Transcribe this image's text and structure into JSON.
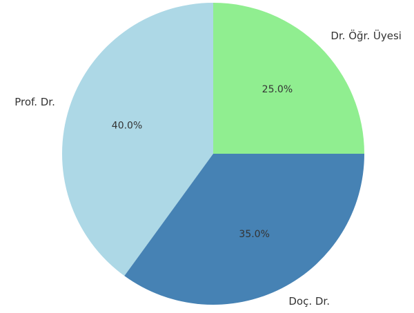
{
  "chart_data": {
    "type": "pie",
    "categories": [
      "Prof. Dr.",
      "Doç. Dr.",
      "Dr. Öğr. Üyesi"
    ],
    "values": [
      40,
      35,
      25
    ],
    "value_labels": [
      "40.0%",
      "35.0%",
      "25.0%"
    ],
    "colors": [
      "#add8e6",
      "#4682b4",
      "#90ee90"
    ]
  }
}
